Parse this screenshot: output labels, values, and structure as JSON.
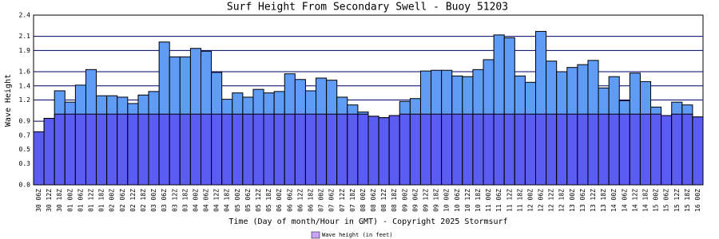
{
  "chart_data": {
    "type": "bar",
    "title": "Surf Height From Secondary Swell - Buoy 51203",
    "y_label": "Wave Height",
    "x_label": "Time (Day of month/Hour in GMT) - Copyright 2025 Stormsurf",
    "categories": [
      "30 06Z",
      "30 12Z",
      "30 18Z",
      "01 00Z",
      "01 06Z",
      "01 12Z",
      "01 18Z",
      "02 00Z",
      "02 06Z",
      "02 12Z",
      "02 18Z",
      "03 00Z",
      "03 06Z",
      "03 12Z",
      "03 18Z",
      "04 00Z",
      "04 06Z",
      "04 12Z",
      "04 18Z",
      "05 00Z",
      "05 06Z",
      "05 12Z",
      "05 18Z",
      "06 00Z",
      "06 06Z",
      "06 12Z",
      "06 18Z",
      "07 00Z",
      "07 06Z",
      "07 12Z",
      "07 18Z",
      "08 00Z",
      "08 06Z",
      "08 12Z",
      "08 18Z",
      "09 00Z",
      "09 06Z",
      "09 12Z",
      "09 18Z",
      "10 00Z",
      "10 06Z",
      "10 12Z",
      "10 18Z",
      "11 00Z",
      "11 06Z",
      "11 12Z",
      "11 18Z",
      "12 00Z",
      "12 06Z",
      "12 12Z",
      "12 18Z",
      "13 00Z",
      "13 06Z",
      "13 12Z",
      "13 18Z",
      "14 00Z",
      "14 06Z",
      "14 12Z",
      "14 18Z",
      "15 00Z",
      "15 06Z",
      "15 12Z",
      "15 18Z",
      "16 00Z"
    ],
    "series": [
      {
        "name": "Wave height (in feet)",
        "color": "#5f9cf5",
        "values": [
          0.75,
          0.94,
          1.33,
          1.17,
          1.41,
          1.63,
          1.26,
          1.26,
          1.24,
          1.15,
          1.27,
          1.32,
          2.02,
          1.81,
          1.81,
          1.93,
          1.89,
          1.59,
          1.21,
          1.3,
          1.24,
          1.35,
          1.3,
          1.32,
          1.57,
          1.49,
          1.33,
          1.51,
          1.48,
          1.24,
          1.13,
          1.03,
          0.97,
          0.95,
          0.98,
          1.18,
          1.22,
          1.61,
          1.62,
          1.62,
          1.54,
          1.53,
          1.63,
          1.77,
          2.12,
          2.08,
          1.54,
          1.45,
          2.17,
          1.75,
          1.6,
          1.66,
          1.7,
          1.76,
          1.37,
          1.53,
          1.19,
          1.58,
          1.46,
          1.1,
          0.98,
          1.17,
          1.13,
          0.96
        ]
      }
    ],
    "legend_color": "#c7a4f5",
    "color_split": 1.0,
    "low_color": "#5b5cf2",
    "ylim": [
      0,
      2.4
    ],
    "yticks": [
      {
        "value": 0,
        "label": "0.0"
      },
      0.3,
      0.5,
      0.7,
      0.9,
      1.2,
      1.4,
      1.6,
      1.9,
      2.1,
      2.4
    ],
    "grid": true
  }
}
